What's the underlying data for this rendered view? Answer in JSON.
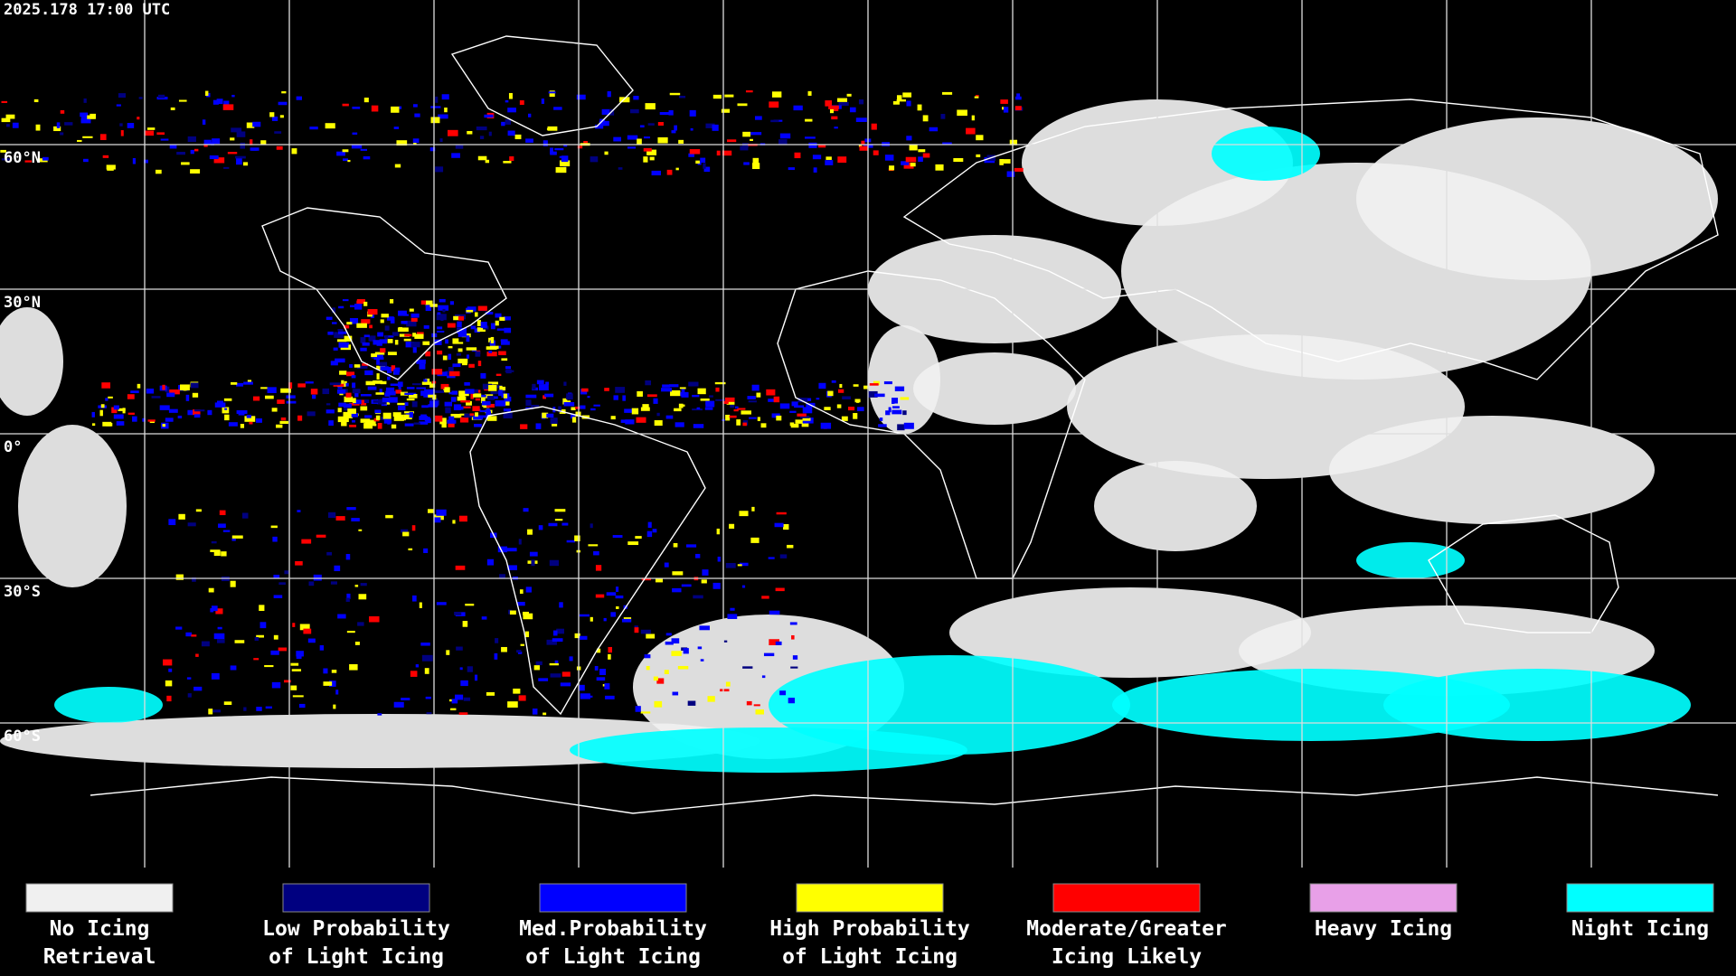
{
  "header": {
    "timestamp": "2025.178 17:00 UTC"
  },
  "map": {
    "latitude_labels": [
      "60°N",
      "30°N",
      "0°",
      "30°S",
      "60°S"
    ]
  },
  "legend": {
    "items": [
      {
        "label_lines": [
          "No Icing",
          "Retrieval"
        ],
        "color": "#f0f0f0"
      },
      {
        "label_lines": [
          "Low Probability",
          "of Light Icing"
        ],
        "color": "#000080"
      },
      {
        "label_lines": [
          "Med.Probability",
          "of Light Icing"
        ],
        "color": "#0000ff"
      },
      {
        "label_lines": [
          "High Probability",
          "of Light Icing"
        ],
        "color": "#ffff00"
      },
      {
        "label_lines": [
          "Moderate/Greater",
          "Icing Likely"
        ],
        "color": "#ff0000"
      },
      {
        "label_lines": [
          "Heavy Icing"
        ],
        "color": "#e8a0e8"
      },
      {
        "label_lines": [
          "Night Icing"
        ],
        "color": "#00ffff"
      }
    ]
  }
}
